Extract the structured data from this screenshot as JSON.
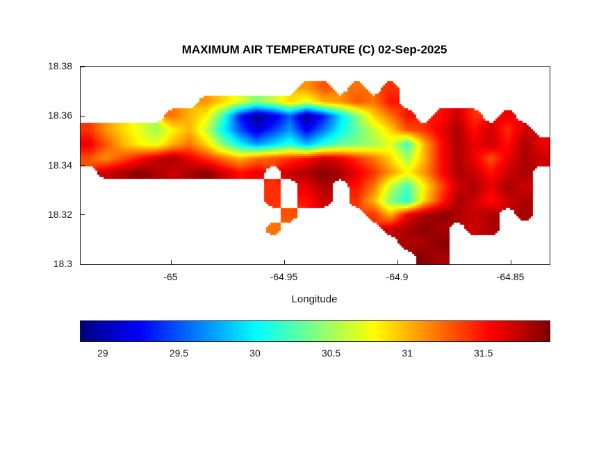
{
  "chart_data": {
    "type": "heatmap",
    "title": "MAXIMUM AIR TEMPERATURE (C) 02-Sep-2025",
    "units": "C",
    "date": "02-Sep-2025",
    "colormap": "jet",
    "x_axis": {
      "label": "Longitude",
      "limits": [
        -65.04,
        -64.833
      ],
      "ticks": [
        {
          "value": -65,
          "label": "-65"
        },
        {
          "value": -64.95,
          "label": "-64.95"
        },
        {
          "value": -64.9,
          "label": "-64.9"
        },
        {
          "value": -64.85,
          "label": "-64.85"
        }
      ]
    },
    "y_axis": {
      "label": "",
      "limits": [
        18.3,
        18.38
      ],
      "ticks": [
        {
          "value": 18.38,
          "label": "18.38"
        },
        {
          "value": 18.36,
          "label": "18.36"
        },
        {
          "value": 18.34,
          "label": "18.34"
        },
        {
          "value": 18.32,
          "label": "18.32"
        },
        {
          "value": 18.3,
          "label": "18.3"
        }
      ]
    },
    "colorbar": {
      "orientation": "horizontal",
      "limits": [
        28.85,
        31.93
      ],
      "ticks": [
        {
          "value": 29,
          "label": "29"
        },
        {
          "value": 29.5,
          "label": "29.5"
        },
        {
          "value": 30,
          "label": "30"
        },
        {
          "value": 30.5,
          "label": "30.5"
        },
        {
          "value": 31,
          "label": "31"
        },
        {
          "value": 31.5,
          "label": "31.5"
        }
      ]
    },
    "grid": {
      "comment": "approximate max air temperature (C) on a lon/lat grid; null = ocean (no data)",
      "x_min": -65.04,
      "x_max": -64.833,
      "y_min": 18.3,
      "y_max": 18.38,
      "ncols": 28,
      "nrows": 14,
      "values": [
        [
          null,
          null,
          null,
          null,
          null,
          null,
          null,
          null,
          null,
          null,
          null,
          null,
          null,
          null,
          null,
          null,
          null,
          null,
          null,
          null,
          null,
          null,
          null,
          null,
          null,
          null,
          null,
          null
        ],
        [
          null,
          null,
          null,
          null,
          null,
          null,
          null,
          null,
          null,
          null,
          null,
          null,
          null,
          31.1,
          31.3,
          null,
          31.2,
          null,
          31.4,
          null,
          null,
          null,
          null,
          null,
          null,
          null,
          null,
          null
        ],
        [
          null,
          null,
          null,
          null,
          null,
          null,
          null,
          31.1,
          30.9,
          30.7,
          30.4,
          30.6,
          30.9,
          30.7,
          31.0,
          31.1,
          31.3,
          31.2,
          31.5,
          null,
          null,
          null,
          null,
          null,
          null,
          null,
          null,
          null
        ],
        [
          null,
          null,
          null,
          null,
          null,
          31.2,
          31.0,
          30.8,
          30.2,
          29.3,
          28.9,
          29.1,
          29.5,
          28.9,
          29.3,
          29.9,
          30.4,
          30.9,
          31.2,
          31.5,
          null,
          31.5,
          31.7,
          31.4,
          null,
          31.6,
          null,
          null
        ],
        [
          31.4,
          31.1,
          30.9,
          30.7,
          30.5,
          30.8,
          31.0,
          30.6,
          30.0,
          29.5,
          29.1,
          29.4,
          29.7,
          29.2,
          29.6,
          30.0,
          30.3,
          30.6,
          30.9,
          31.3,
          31.4,
          31.6,
          31.8,
          31.5,
          31.7,
          31.4,
          31.7,
          null
        ],
        [
          31.6,
          31.3,
          31.0,
          30.8,
          30.7,
          31.0,
          31.2,
          30.9,
          30.4,
          30.0,
          29.7,
          29.9,
          30.1,
          29.8,
          30.1,
          30.3,
          30.4,
          30.5,
          30.7,
          30.2,
          31.0,
          31.5,
          31.8,
          31.6,
          31.7,
          31.5,
          31.8,
          31.6
        ],
        [
          31.3,
          31.1,
          31.3,
          31.5,
          31.7,
          31.8,
          31.6,
          31.4,
          31.2,
          31.0,
          31.2,
          31.3,
          31.4,
          31.5,
          31.7,
          31.6,
          31.4,
          31.2,
          30.9,
          30.5,
          31.0,
          31.5,
          31.8,
          31.6,
          31.3,
          31.6,
          31.8,
          31.7
        ],
        [
          null,
          31.7,
          31.8,
          31.9,
          31.8,
          31.7,
          31.8,
          31.9,
          31.7,
          31.5,
          31.6,
          null,
          31.7,
          31.8,
          31.9,
          31.8,
          31.6,
          31.4,
          31.1,
          30.8,
          31.1,
          31.5,
          31.8,
          31.7,
          31.5,
          31.7,
          31.8,
          null
        ],
        [
          null,
          null,
          null,
          null,
          null,
          null,
          null,
          null,
          null,
          null,
          null,
          31.4,
          null,
          31.6,
          31.8,
          null,
          31.5,
          31.2,
          30.6,
          30.2,
          30.8,
          31.3,
          31.7,
          31.8,
          31.6,
          31.8,
          31.7,
          null
        ],
        [
          null,
          null,
          null,
          null,
          null,
          null,
          null,
          null,
          null,
          null,
          null,
          31.4,
          null,
          31.5,
          31.7,
          null,
          31.4,
          31.0,
          30.4,
          30.1,
          30.9,
          31.4,
          31.8,
          31.7,
          31.5,
          31.7,
          31.8,
          null
        ],
        [
          null,
          null,
          null,
          null,
          null,
          null,
          null,
          null,
          null,
          null,
          null,
          null,
          31.3,
          null,
          null,
          null,
          null,
          31.4,
          31.0,
          31.6,
          31.8,
          31.9,
          31.8,
          31.7,
          31.8,
          null,
          31.8,
          null
        ],
        [
          null,
          null,
          null,
          null,
          null,
          null,
          null,
          null,
          null,
          null,
          null,
          31.2,
          null,
          null,
          null,
          null,
          null,
          null,
          31.7,
          31.8,
          31.9,
          31.8,
          null,
          31.7,
          31.8,
          null,
          null,
          null
        ],
        [
          null,
          null,
          null,
          null,
          null,
          null,
          null,
          null,
          null,
          null,
          null,
          null,
          null,
          null,
          null,
          null,
          null,
          null,
          null,
          31.8,
          31.8,
          31.9,
          null,
          null,
          null,
          null,
          null,
          null
        ],
        [
          null,
          null,
          null,
          null,
          null,
          null,
          null,
          null,
          null,
          null,
          null,
          null,
          null,
          null,
          null,
          null,
          null,
          null,
          null,
          null,
          31.9,
          31.8,
          null,
          null,
          null,
          null,
          null,
          null
        ]
      ]
    }
  }
}
